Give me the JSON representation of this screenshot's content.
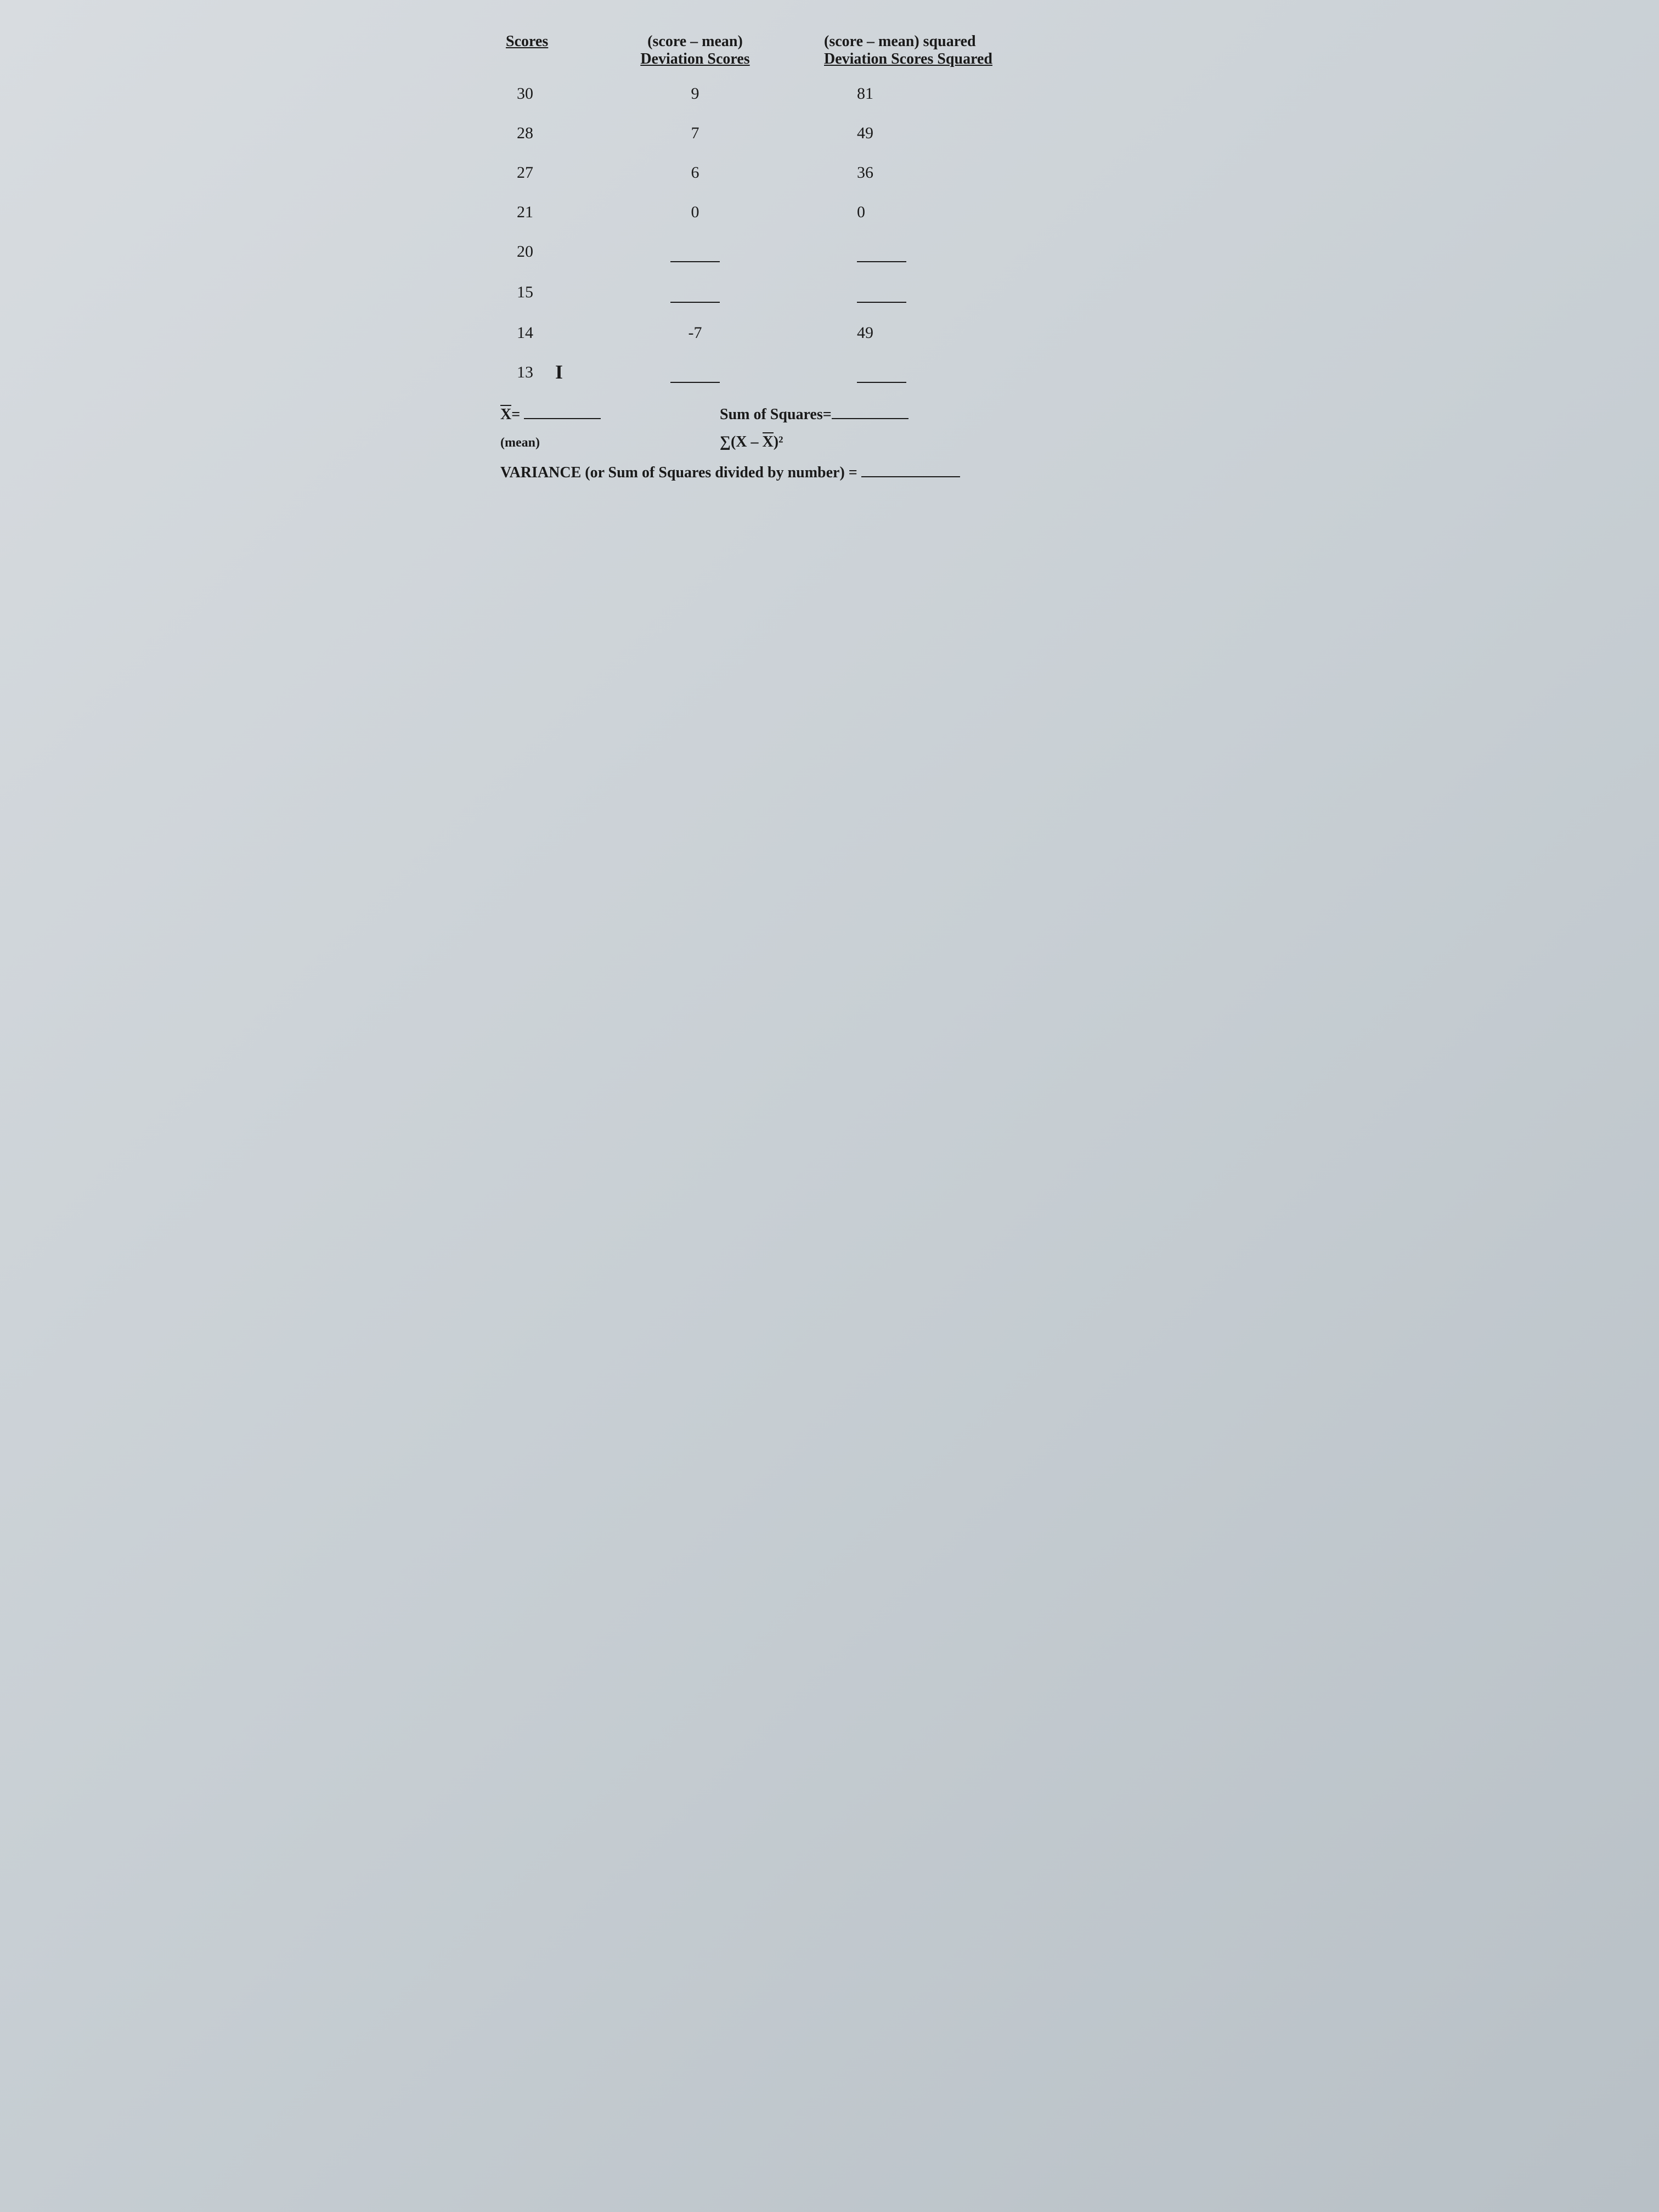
{
  "headers": {
    "scores": "Scores",
    "dev_top": "(score – mean)",
    "dev_label": "Deviation Scores",
    "sq_top": "(score – mean) squared",
    "sq_label": "Deviation Scores Squared"
  },
  "rows": [
    {
      "score": "30",
      "dev": "9",
      "sq": "81",
      "dev_blank": false,
      "sq_blank": false
    },
    {
      "score": "28",
      "dev": "7",
      "sq": "49",
      "dev_blank": false,
      "sq_blank": false
    },
    {
      "score": "27",
      "dev": "6",
      "sq": "36",
      "dev_blank": false,
      "sq_blank": false
    },
    {
      "score": "21",
      "dev": "0",
      "sq": "0",
      "dev_blank": false,
      "sq_blank": false
    },
    {
      "score": "20",
      "dev": "",
      "sq": "",
      "dev_blank": true,
      "sq_blank": true
    },
    {
      "score": "15",
      "dev": "",
      "sq": "",
      "dev_blank": true,
      "sq_blank": true
    },
    {
      "score": "14",
      "dev": "-7",
      "sq": "49",
      "dev_blank": false,
      "sq_blank": false
    },
    {
      "score": "13",
      "dev": "",
      "sq": "",
      "dev_blank": true,
      "sq_blank": true,
      "marked": true
    }
  ],
  "footer": {
    "xbar_label": "X=",
    "mean_label": "(mean)",
    "sumsq_label": "Sum of Squares=",
    "formula": "∑(X – X)²",
    "variance_label": "VARIANCE (or Sum of Squares divided by number) ="
  }
}
